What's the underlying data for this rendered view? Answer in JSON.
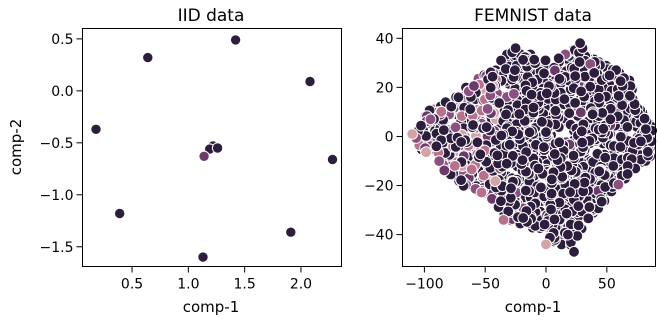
{
  "chart_data": [
    {
      "type": "scatter",
      "title": "IID data",
      "xlabel": "comp-1",
      "ylabel": "comp-2",
      "xlim": [
        0.06,
        2.36
      ],
      "ylim": [
        -1.69,
        0.6
      ],
      "xticks": [
        0.5,
        1.0,
        1.5,
        2.0
      ],
      "xtick_labels": [
        "0.5",
        "1.0",
        "1.5",
        "2.0"
      ],
      "yticks": [
        0.5,
        0.0,
        -0.5,
        -1.0,
        -1.5
      ],
      "ytick_labels": [
        "0.5",
        "0.0",
        "−0.5",
        "−1.0",
        "−1.5"
      ],
      "grid": false,
      "legend": "none",
      "colors": {
        "dark": "#2d1e3e",
        "mid": "#6b3a6b",
        "light": "#d4a3a8",
        "rose": "#b9718b",
        "plum": "#8c4f7f"
      },
      "points": [
        {
          "x": 1.42,
          "y": 0.49,
          "c": "dark"
        },
        {
          "x": 0.64,
          "y": 0.32,
          "c": "dark"
        },
        {
          "x": 2.08,
          "y": 0.09,
          "c": "dark"
        },
        {
          "x": 0.18,
          "y": -0.37,
          "c": "dark"
        },
        {
          "x": 1.22,
          "y": -0.53,
          "c": "dark"
        },
        {
          "x": 1.19,
          "y": -0.56,
          "c": "dark"
        },
        {
          "x": 1.26,
          "y": -0.55,
          "c": "dark"
        },
        {
          "x": 1.14,
          "y": -0.63,
          "c": "mid"
        },
        {
          "x": 2.28,
          "y": -0.66,
          "c": "dark"
        },
        {
          "x": 0.39,
          "y": -1.18,
          "c": "dark"
        },
        {
          "x": 1.91,
          "y": -1.36,
          "c": "dark"
        },
        {
          "x": 1.13,
          "y": -1.6,
          "c": "dark"
        }
      ]
    },
    {
      "type": "scatter",
      "title": "FEMNIST data",
      "xlabel": "comp-1",
      "ylabel": "",
      "xlim": [
        -118,
        90
      ],
      "ylim": [
        -53,
        44
      ],
      "xticks": [
        -100,
        -50,
        0,
        50
      ],
      "xtick_labels": [
        "−100",
        "−50",
        "0",
        "50"
      ],
      "yticks": [
        40,
        20,
        0,
        -20,
        -40
      ],
      "ytick_labels": [
        "40",
        "20",
        "0",
        "−20",
        "−40"
      ],
      "grid": false,
      "legend": "none",
      "colors": {
        "dark": "#2d1e3e",
        "mid": "#6b3a6b",
        "light": "#d4a3a8",
        "rose": "#b9718b",
        "plum": "#8c4f7f"
      },
      "cloud_outline": [
        [
          -110,
          2
        ],
        [
          -98,
          10
        ],
        [
          -80,
          15
        ],
        [
          -62,
          22
        ],
        [
          -45,
          27
        ],
        [
          -30,
          35
        ],
        [
          -12,
          34
        ],
        [
          5,
          30
        ],
        [
          22,
          36
        ],
        [
          38,
          32
        ],
        [
          55,
          28
        ],
        [
          68,
          24
        ],
        [
          78,
          12
        ],
        [
          88,
          4
        ],
        [
          86,
          -8
        ],
        [
          75,
          -14
        ],
        [
          60,
          -20
        ],
        [
          45,
          -28
        ],
        [
          32,
          -36
        ],
        [
          20,
          -45
        ],
        [
          5,
          -44
        ],
        [
          -8,
          -38
        ],
        [
          -30,
          -34
        ],
        [
          -50,
          -24
        ],
        [
          -70,
          -20
        ],
        [
          -88,
          -12
        ],
        [
          -102,
          -6
        ]
      ],
      "points": [
        {
          "x": 30,
          "y": 36,
          "c": "dark"
        },
        {
          "x": 28,
          "y": 38,
          "c": "dark"
        },
        {
          "x": -25,
          "y": 36,
          "c": "dark"
        },
        {
          "x": -110,
          "y": 1,
          "c": "light"
        },
        {
          "x": -95,
          "y": 7,
          "c": "plum"
        },
        {
          "x": -75,
          "y": -12,
          "c": "rose"
        },
        {
          "x": 0,
          "y": -44,
          "c": "light"
        },
        {
          "x": 18,
          "y": -40,
          "c": "dark"
        },
        {
          "x": 23,
          "y": -47,
          "c": "dark"
        },
        {
          "x": 82,
          "y": 3,
          "c": "dark"
        },
        {
          "x": 78,
          "y": -2,
          "c": "dark"
        },
        {
          "x": -35,
          "y": -34,
          "c": "rose"
        }
      ],
      "cloud_density": 1500
    }
  ]
}
